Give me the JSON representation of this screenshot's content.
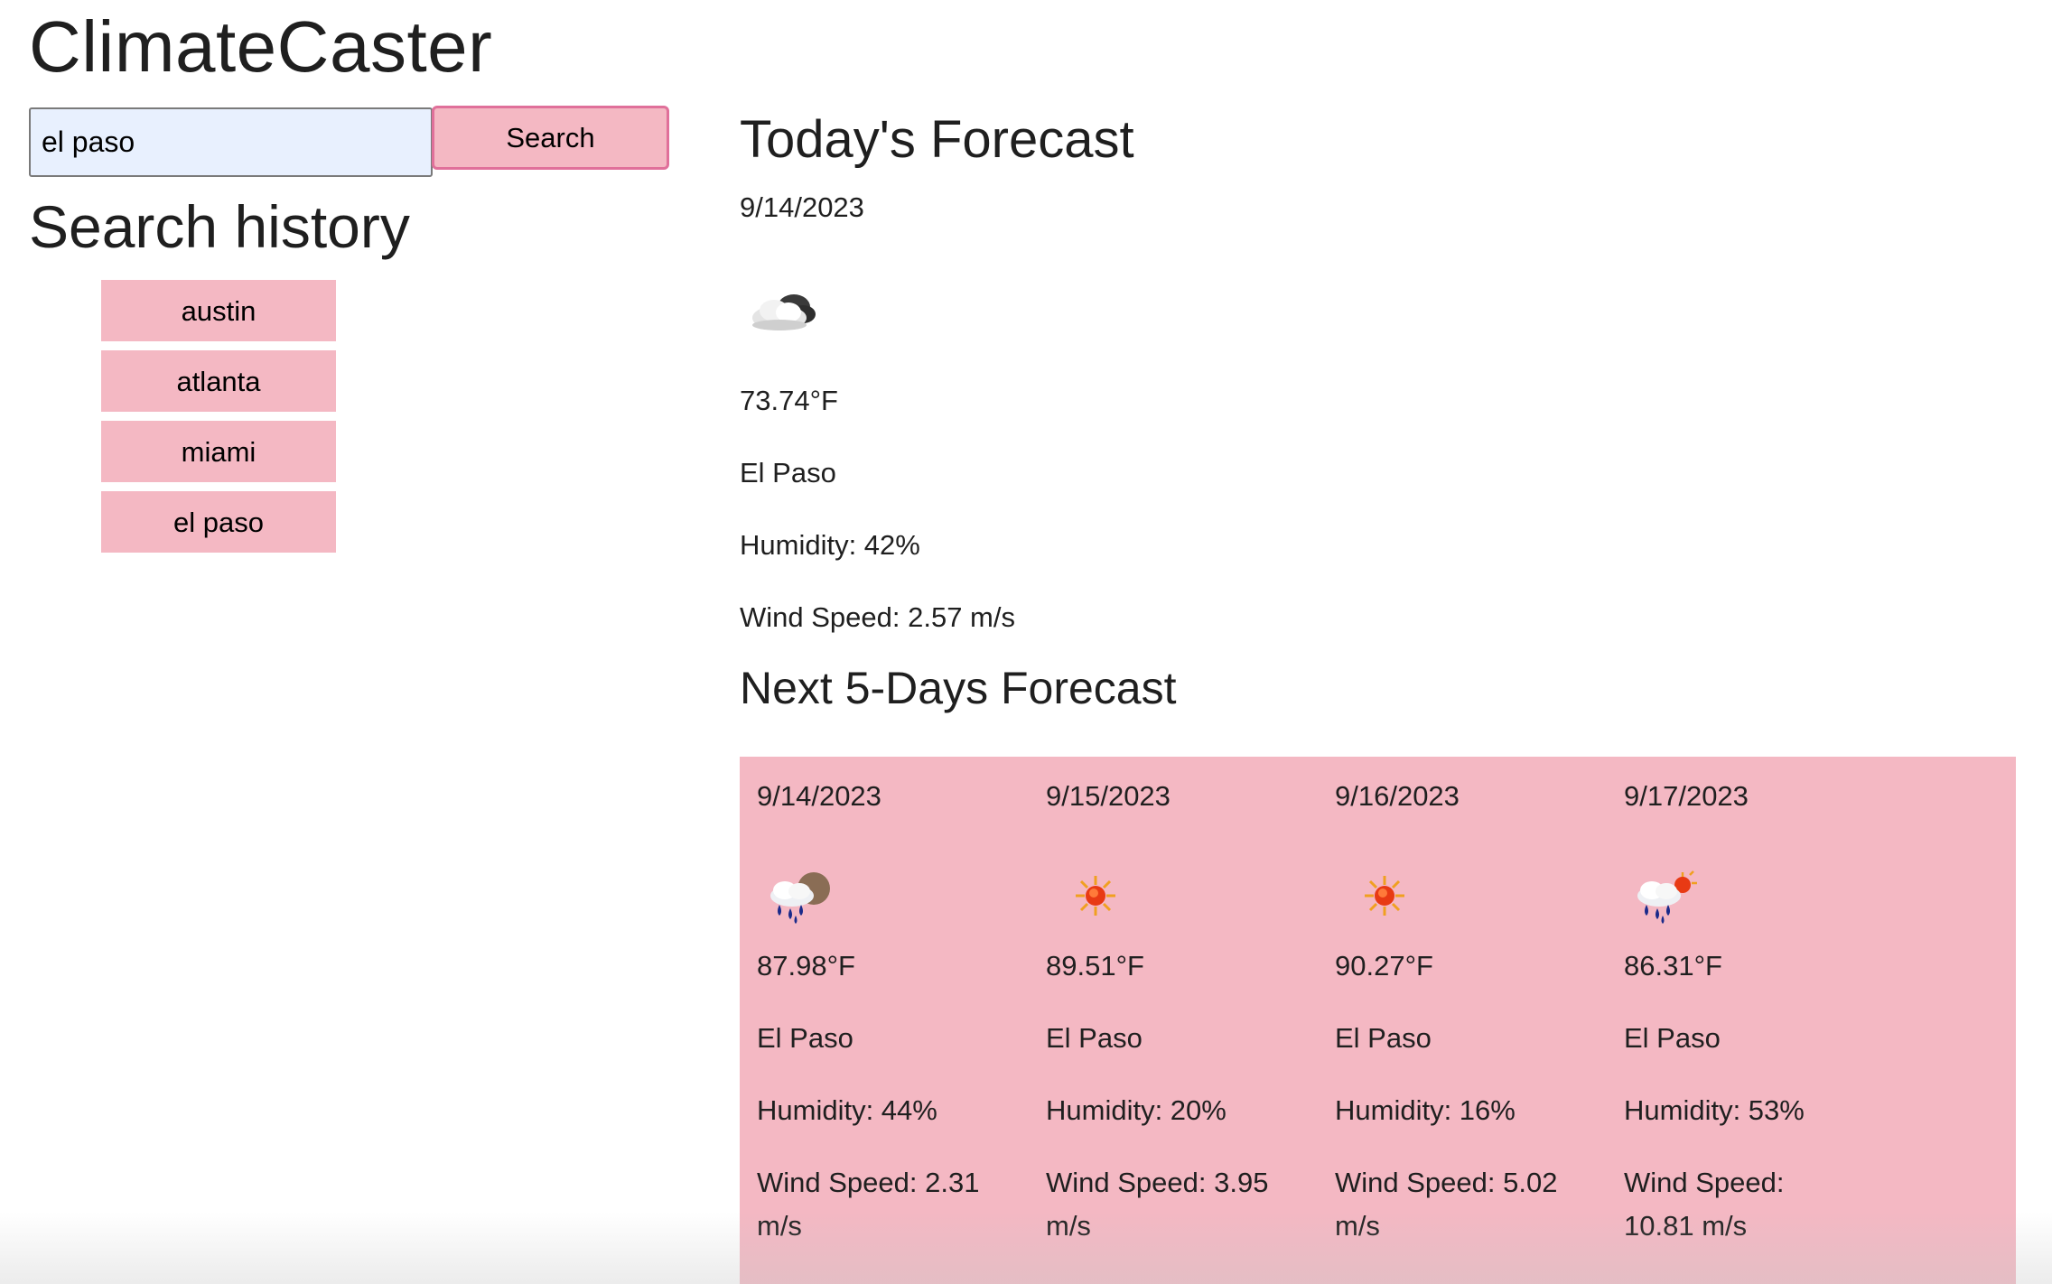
{
  "app": {
    "title": "ClimateCaster"
  },
  "search": {
    "value": "el paso",
    "button_label": "Search"
  },
  "history": {
    "heading": "Search history",
    "items": [
      {
        "label": "austin"
      },
      {
        "label": "atlanta"
      },
      {
        "label": "miami"
      },
      {
        "label": "el paso"
      }
    ]
  },
  "today": {
    "heading": "Today's Forecast",
    "date": "9/14/2023",
    "icon": "partly-cloudy-icon",
    "temperature": "73.74°F",
    "city": "El Paso",
    "humidity": "Humidity: 42%",
    "wind": "Wind Speed: 2.57 m/s"
  },
  "five_day": {
    "heading": "Next 5-Days Forecast",
    "days": [
      {
        "date": "9/14/2023",
        "icon": "rain-cloud-icon",
        "temperature": "87.98°F",
        "city": "El Paso",
        "humidity": "Humidity: 44%",
        "wind_line1": "Wind Speed: 2.31",
        "wind_line2": "m/s"
      },
      {
        "date": "9/15/2023",
        "icon": "sun-icon",
        "temperature": "89.51°F",
        "city": "El Paso",
        "humidity": "Humidity: 20%",
        "wind_line1": "Wind Speed: 3.95",
        "wind_line2": "m/s"
      },
      {
        "date": "9/16/2023",
        "icon": "sun-icon",
        "temperature": "90.27°F",
        "city": "El Paso",
        "humidity": "Humidity: 16%",
        "wind_line1": "Wind Speed: 5.02",
        "wind_line2": "m/s"
      },
      {
        "date": "9/17/2023",
        "icon": "rain-sun-icon",
        "temperature": "86.31°F",
        "city": "El Paso",
        "humidity": "Humidity: 53%",
        "wind_line1": "Wind Speed:",
        "wind_line2": "10.81 m/s"
      }
    ]
  },
  "colors": {
    "accent_pink": "#f4b8c3",
    "button_border": "#e0709a",
    "input_bg": "#e8f0fe"
  }
}
